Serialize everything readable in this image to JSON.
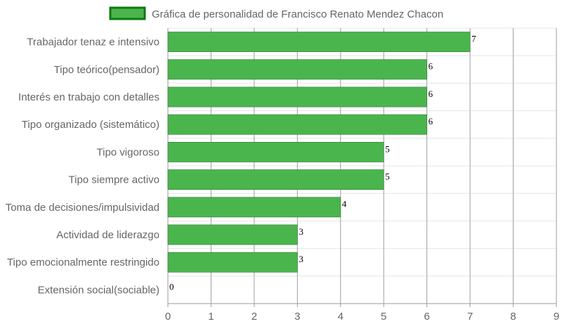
{
  "chart_data": {
    "type": "bar",
    "orientation": "horizontal",
    "title": "",
    "categories": [
      "Trabajador tenaz e intensivo",
      "Tipo teórico(pensador)",
      "Interés en trabajo con detalles",
      "Tipo organizado (sistemático)",
      "Tipo vigoroso",
      "Tipo siempre activo",
      "Toma de decisiones/impulsividad",
      "Actividad de liderazgo",
      "Tipo emocionalmente restringido",
      "Extensión social(sociable)"
    ],
    "series": [
      {
        "name": "Gráfica de personalidad de Francisco Renato Mendez Chacon",
        "values": [
          7,
          6,
          6,
          6,
          5,
          5,
          4,
          3,
          3,
          0
        ],
        "color": "#4bb54d",
        "border_color": "#2e7d32"
      }
    ],
    "xlim": [
      0,
      9
    ],
    "x_ticks": [
      "0",
      "1",
      "2",
      "3",
      "4",
      "5",
      "6",
      "7",
      "8",
      "9"
    ],
    "xlabel": "",
    "ylabel": "",
    "grid": true,
    "legend_position": "top",
    "legend_swatch_border": "#0d7a0d",
    "data_labels": true
  }
}
